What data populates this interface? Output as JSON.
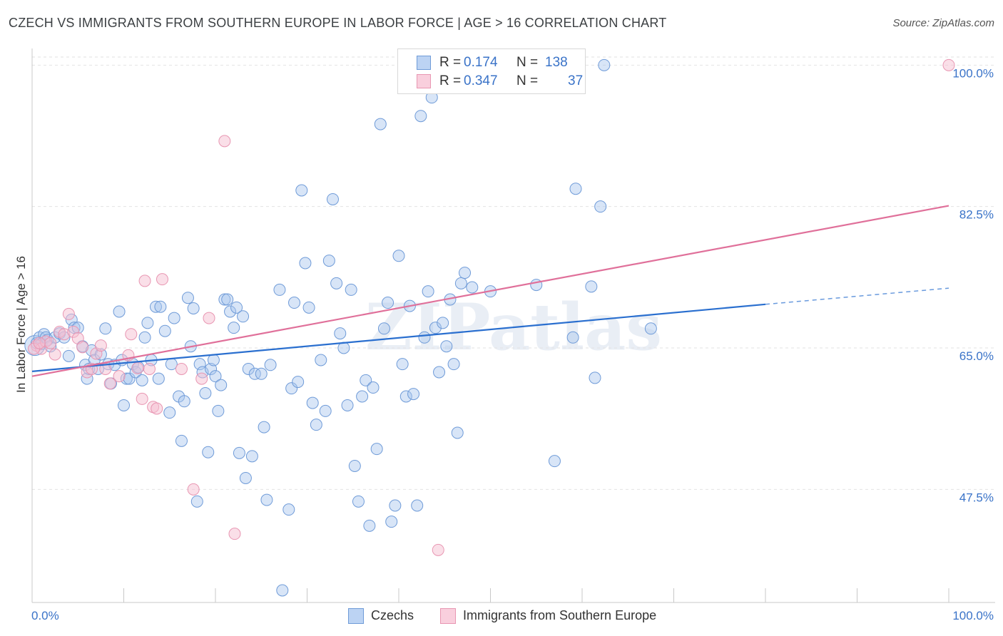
{
  "title": "CZECH VS IMMIGRANTS FROM SOUTHERN EUROPE IN LABOR FORCE | AGE > 16 CORRELATION CHART",
  "source": "Source: ZipAtlas.com",
  "watermark": "ZIPatlas",
  "legend": {
    "r_label": "R =",
    "n_label": "N =",
    "rows": [
      {
        "r": "0.174",
        "n": "138"
      },
      {
        "r": "0.347",
        "n": "37"
      }
    ]
  },
  "colors": {
    "czechs_fill": "#a9c6ee",
    "czechs_stroke": "#6f9bd8",
    "czechs_line": "#2a6fcf",
    "immig_fill": "#f6bfd1",
    "immig_stroke": "#e896b2",
    "immig_line": "#e0709a",
    "axis_text": "#3a73c8",
    "grid": "#e2e2e2"
  },
  "chart_data": {
    "type": "scatter",
    "title": "CZECH VS IMMIGRANTS FROM SOUTHERN EUROPE IN LABOR FORCE | AGE > 16 CORRELATION CHART",
    "xlabel": "",
    "ylabel": "In Labor Force | Age > 16",
    "xlim": [
      0,
      100
    ],
    "ylim": [
      33.5,
      101
    ],
    "x_tick_labels": [
      "0.0%",
      "100.0%"
    ],
    "y_ticks": [
      47.5,
      65.0,
      82.5,
      100.0
    ],
    "y_tick_labels": [
      "47.5%",
      "65.0%",
      "82.5%",
      "100.0%"
    ],
    "grid": true,
    "legend_position": "top-center",
    "series": [
      {
        "name": "Czechs",
        "r": 0.174,
        "n": 138,
        "trend": {
          "x0": 0,
          "y0": 62.1,
          "x1": 80,
          "y1": 70.4,
          "dashed_to_x": 100,
          "dashed_to_y": 72.4
        },
        "points": [
          [
            0.5,
            65.6
          ],
          [
            0.8,
            66.3
          ],
          [
            1.0,
            65.5
          ],
          [
            1.3,
            66.7
          ],
          [
            1.5,
            66.3
          ],
          [
            1.7,
            66.0
          ],
          [
            2.0,
            65.2
          ],
          [
            2.5,
            66.3
          ],
          [
            3.0,
            66.8
          ],
          [
            3.5,
            66.3
          ],
          [
            4.0,
            64.0
          ],
          [
            4.3,
            68.5
          ],
          [
            4.6,
            67.5
          ],
          [
            5.0,
            67.5
          ],
          [
            5.5,
            65.2
          ],
          [
            5.8,
            62.9
          ],
          [
            6.0,
            61.2
          ],
          [
            6.2,
            62.4
          ],
          [
            6.5,
            64.7
          ],
          [
            6.8,
            63.5
          ],
          [
            7.2,
            62.4
          ],
          [
            7.5,
            64.2
          ],
          [
            8.0,
            67.4
          ],
          [
            8.3,
            63.0
          ],
          [
            8.6,
            60.6
          ],
          [
            9.0,
            62.9
          ],
          [
            9.5,
            69.5
          ],
          [
            9.8,
            63.5
          ],
          [
            10.0,
            57.9
          ],
          [
            10.3,
            61.2
          ],
          [
            10.6,
            61.2
          ],
          [
            11.0,
            63.0
          ],
          [
            11.3,
            62.0
          ],
          [
            11.6,
            62.6
          ],
          [
            12.0,
            61.0
          ],
          [
            12.3,
            66.3
          ],
          [
            12.6,
            68.1
          ],
          [
            13.0,
            63.5
          ],
          [
            13.5,
            70.1
          ],
          [
            13.8,
            61.2
          ],
          [
            14.0,
            70.1
          ],
          [
            14.5,
            67.1
          ],
          [
            15.0,
            57.0
          ],
          [
            15.2,
            63.0
          ],
          [
            15.5,
            68.7
          ],
          [
            16.0,
            59.0
          ],
          [
            16.3,
            53.5
          ],
          [
            16.6,
            58.4
          ],
          [
            17.0,
            71.2
          ],
          [
            17.3,
            65.2
          ],
          [
            17.6,
            69.9
          ],
          [
            18.0,
            46.0
          ],
          [
            18.3,
            63.0
          ],
          [
            18.6,
            62.0
          ],
          [
            18.9,
            59.4
          ],
          [
            19.2,
            52.1
          ],
          [
            19.5,
            62.4
          ],
          [
            19.8,
            63.5
          ],
          [
            20.0,
            61.5
          ],
          [
            20.3,
            57.2
          ],
          [
            20.6,
            60.4
          ],
          [
            21.0,
            71.0
          ],
          [
            21.3,
            71.0
          ],
          [
            21.6,
            69.5
          ],
          [
            22.0,
            67.5
          ],
          [
            22.3,
            70.0
          ],
          [
            22.6,
            52.0
          ],
          [
            23.0,
            68.9
          ],
          [
            23.3,
            48.9
          ],
          [
            23.6,
            62.4
          ],
          [
            24.0,
            51.6
          ],
          [
            24.3,
            61.8
          ],
          [
            25.0,
            61.8
          ],
          [
            25.3,
            55.2
          ],
          [
            25.6,
            46.2
          ],
          [
            26.0,
            62.9
          ],
          [
            27.0,
            72.2
          ],
          [
            27.3,
            35.0
          ],
          [
            28.0,
            45.0
          ],
          [
            28.3,
            60.0
          ],
          [
            28.6,
            70.6
          ],
          [
            29.0,
            60.8
          ],
          [
            29.4,
            84.5
          ],
          [
            29.8,
            75.5
          ],
          [
            30.2,
            70.0
          ],
          [
            30.6,
            58.2
          ],
          [
            31.0,
            55.5
          ],
          [
            31.5,
            63.5
          ],
          [
            32.0,
            57.2
          ],
          [
            32.4,
            75.8
          ],
          [
            32.8,
            83.4
          ],
          [
            33.2,
            73.0
          ],
          [
            33.6,
            66.8
          ],
          [
            34.0,
            65.0
          ],
          [
            34.4,
            57.9
          ],
          [
            34.8,
            72.2
          ],
          [
            35.2,
            50.4
          ],
          [
            35.6,
            46.0
          ],
          [
            36.0,
            59.0
          ],
          [
            36.4,
            61.0
          ],
          [
            36.8,
            43.0
          ],
          [
            37.2,
            60.1
          ],
          [
            37.6,
            52.5
          ],
          [
            38.0,
            92.7
          ],
          [
            38.4,
            67.4
          ],
          [
            38.8,
            70.6
          ],
          [
            39.2,
            43.5
          ],
          [
            39.6,
            45.5
          ],
          [
            40.0,
            76.4
          ],
          [
            40.4,
            63.0
          ],
          [
            40.8,
            59.0
          ],
          [
            41.2,
            70.2
          ],
          [
            41.6,
            59.3
          ],
          [
            42.0,
            45.5
          ],
          [
            42.4,
            93.7
          ],
          [
            42.8,
            66.3
          ],
          [
            43.2,
            72.0
          ],
          [
            43.6,
            96.0
          ],
          [
            44.0,
            67.5
          ],
          [
            44.4,
            62.0
          ],
          [
            44.8,
            68.1
          ],
          [
            45.2,
            65.2
          ],
          [
            45.6,
            71.0
          ],
          [
            46.0,
            63.0
          ],
          [
            46.4,
            54.5
          ],
          [
            46.8,
            73.0
          ],
          [
            47.2,
            74.3
          ],
          [
            48.0,
            72.5
          ],
          [
            50.0,
            72.0
          ],
          [
            55.0,
            72.8
          ],
          [
            57.0,
            51.0
          ],
          [
            59.0,
            66.3
          ],
          [
            59.3,
            84.7
          ],
          [
            61.0,
            72.6
          ],
          [
            61.4,
            61.3
          ],
          [
            62.0,
            82.5
          ],
          [
            62.4,
            100.0
          ],
          [
            67.5,
            67.4
          ]
        ]
      },
      {
        "name": "Immigrants from Southern Europe",
        "r": 0.347,
        "n": 37,
        "trend": {
          "x0": 0,
          "y0": 61.5,
          "x1": 100,
          "y1": 82.6
        },
        "points": [
          [
            0.5,
            65.3
          ],
          [
            1.0,
            64.9
          ],
          [
            1.5,
            65.8
          ],
          [
            2.0,
            65.6
          ],
          [
            2.5,
            64.2
          ],
          [
            3.0,
            67.0
          ],
          [
            3.5,
            66.7
          ],
          [
            4.0,
            69.2
          ],
          [
            4.5,
            67.0
          ],
          [
            5.0,
            66.2
          ],
          [
            5.5,
            65.1
          ],
          [
            6.0,
            62.0
          ],
          [
            6.5,
            62.4
          ],
          [
            7.0,
            64.3
          ],
          [
            7.5,
            65.3
          ],
          [
            8.0,
            62.4
          ],
          [
            8.5,
            60.6
          ],
          [
            9.5,
            61.5
          ],
          [
            10.5,
            64.1
          ],
          [
            10.8,
            66.7
          ],
          [
            11.5,
            62.5
          ],
          [
            12.0,
            58.7
          ],
          [
            12.3,
            73.3
          ],
          [
            12.8,
            62.4
          ],
          [
            13.2,
            57.7
          ],
          [
            13.6,
            57.5
          ],
          [
            14.2,
            73.5
          ],
          [
            16.3,
            62.4
          ],
          [
            17.6,
            47.5
          ],
          [
            18.5,
            61.2
          ],
          [
            19.3,
            68.7
          ],
          [
            21.0,
            90.6
          ],
          [
            22.1,
            42.0
          ],
          [
            44.3,
            40.0
          ],
          [
            100.0,
            100.0
          ],
          [
            0.2,
            64.9
          ],
          [
            0.8,
            65.6
          ]
        ]
      }
    ]
  }
}
